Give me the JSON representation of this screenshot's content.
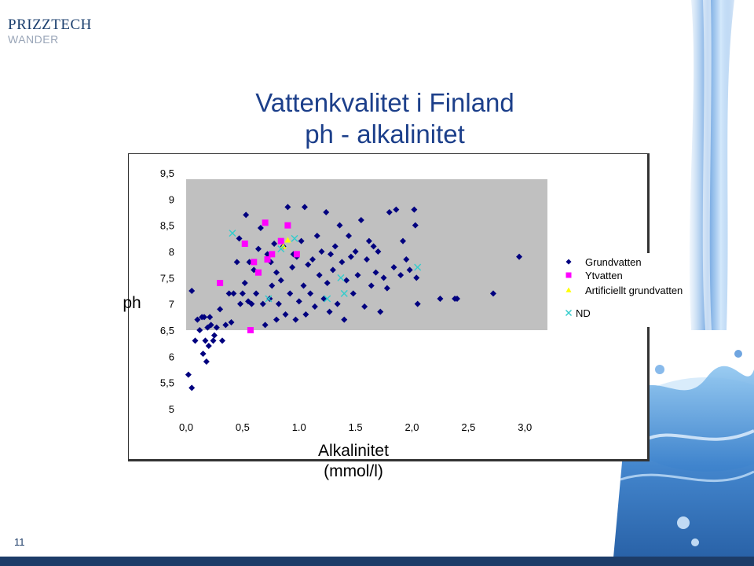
{
  "logo": {
    "line1": "PRIZZTECH",
    "line2": "WANDER"
  },
  "title": {
    "line1": "Vattenkvalitet i Finland",
    "line2": "ph - alkalinitet"
  },
  "page_number": "11",
  "colors": {
    "grundvatten": "#00007f",
    "ytvatten": "#ff00ff",
    "artificiellt": "#ffff00",
    "nd": "#33cccc",
    "plot_bg": "#c0c0c0",
    "title": "#1c3f8a"
  },
  "chart_data": {
    "type": "scatter",
    "ylabel": "ph",
    "xlabel_line1": "Alkalinitet",
    "xlabel_line2": "(mmol/l)",
    "xlim": [
      0,
      3.2
    ],
    "ylim": [
      5,
      9.5
    ],
    "x_ticks": [
      0,
      0.5,
      1.0,
      1.5,
      2.0,
      2.5,
      3.0
    ],
    "x_tick_labels": [
      "0,0",
      "0,5",
      "1.0",
      "1.5",
      "2,0",
      "2,5",
      "3,0"
    ],
    "y_ticks": [
      5,
      5.5,
      6,
      6.5,
      7,
      7.5,
      8,
      8.5,
      9,
      9.5
    ],
    "y_tick_labels": [
      "5",
      "5,5",
      "6",
      "6,5",
      "7",
      "7,5",
      "8",
      "8,5",
      "9",
      "9,5"
    ],
    "grid": false,
    "legend_position": "right",
    "series": [
      {
        "name": "Grundvatten",
        "marker": "diamond",
        "points": [
          [
            0.02,
            5.65
          ],
          [
            0.05,
            5.4
          ],
          [
            0.05,
            7.25
          ],
          [
            0.08,
            6.3
          ],
          [
            0.1,
            6.7
          ],
          [
            0.12,
            6.5
          ],
          [
            0.14,
            6.75
          ],
          [
            0.15,
            6.05
          ],
          [
            0.16,
            6.75
          ],
          [
            0.17,
            6.3
          ],
          [
            0.18,
            5.9
          ],
          [
            0.19,
            6.55
          ],
          [
            0.2,
            6.2
          ],
          [
            0.21,
            6.75
          ],
          [
            0.22,
            6.6
          ],
          [
            0.24,
            6.3
          ],
          [
            0.25,
            6.4
          ],
          [
            0.27,
            6.55
          ],
          [
            0.3,
            6.9
          ],
          [
            0.32,
            6.3
          ],
          [
            0.35,
            6.6
          ],
          [
            0.38,
            7.2
          ],
          [
            0.4,
            6.65
          ],
          [
            0.42,
            7.2
          ],
          [
            0.45,
            7.8
          ],
          [
            0.47,
            8.25
          ],
          [
            0.48,
            7.0
          ],
          [
            0.5,
            7.2
          ],
          [
            0.52,
            7.4
          ],
          [
            0.53,
            8.7
          ],
          [
            0.55,
            7.05
          ],
          [
            0.56,
            7.8
          ],
          [
            0.58,
            7.0
          ],
          [
            0.6,
            7.65
          ],
          [
            0.62,
            7.2
          ],
          [
            0.64,
            8.05
          ],
          [
            0.66,
            8.45
          ],
          [
            0.68,
            7.0
          ],
          [
            0.7,
            6.6
          ],
          [
            0.72,
            7.95
          ],
          [
            0.74,
            7.1
          ],
          [
            0.75,
            7.8
          ],
          [
            0.76,
            7.35
          ],
          [
            0.78,
            8.15
          ],
          [
            0.8,
            6.7
          ],
          [
            0.8,
            7.6
          ],
          [
            0.82,
            7.0
          ],
          [
            0.84,
            7.45
          ],
          [
            0.86,
            8.1
          ],
          [
            0.88,
            6.8
          ],
          [
            0.9,
            8.85
          ],
          [
            0.92,
            7.2
          ],
          [
            0.94,
            7.7
          ],
          [
            0.95,
            7.95
          ],
          [
            0.97,
            6.7
          ],
          [
            0.98,
            7.9
          ],
          [
            1.0,
            7.05
          ],
          [
            1.02,
            8.2
          ],
          [
            1.04,
            7.35
          ],
          [
            1.05,
            8.85
          ],
          [
            1.06,
            6.8
          ],
          [
            1.08,
            7.75
          ],
          [
            1.1,
            7.2
          ],
          [
            1.12,
            7.85
          ],
          [
            1.14,
            6.95
          ],
          [
            1.16,
            8.3
          ],
          [
            1.18,
            7.55
          ],
          [
            1.2,
            8.0
          ],
          [
            1.22,
            7.1
          ],
          [
            1.24,
            8.75
          ],
          [
            1.25,
            7.4
          ],
          [
            1.27,
            6.85
          ],
          [
            1.28,
            7.95
          ],
          [
            1.3,
            7.65
          ],
          [
            1.32,
            8.1
          ],
          [
            1.34,
            7.0
          ],
          [
            1.36,
            8.5
          ],
          [
            1.38,
            7.8
          ],
          [
            1.4,
            6.7
          ],
          [
            1.42,
            7.45
          ],
          [
            1.44,
            8.3
          ],
          [
            1.46,
            7.9
          ],
          [
            1.48,
            7.2
          ],
          [
            1.5,
            8.0
          ],
          [
            1.52,
            7.55
          ],
          [
            1.55,
            8.6
          ],
          [
            1.58,
            6.95
          ],
          [
            1.6,
            7.85
          ],
          [
            1.62,
            8.2
          ],
          [
            1.64,
            7.35
          ],
          [
            1.66,
            8.1
          ],
          [
            1.68,
            7.6
          ],
          [
            1.7,
            8.0
          ],
          [
            1.72,
            6.85
          ],
          [
            1.75,
            7.5
          ],
          [
            1.78,
            7.3
          ],
          [
            1.8,
            8.75
          ],
          [
            1.84,
            7.7
          ],
          [
            1.86,
            8.8
          ],
          [
            1.9,
            7.55
          ],
          [
            1.92,
            8.2
          ],
          [
            1.95,
            7.85
          ],
          [
            1.98,
            7.65
          ],
          [
            2.02,
            8.8
          ],
          [
            2.03,
            8.5
          ],
          [
            2.04,
            7.5
          ],
          [
            2.05,
            7.0
          ],
          [
            2.25,
            7.1
          ],
          [
            2.38,
            7.1
          ],
          [
            2.4,
            7.1
          ],
          [
            2.72,
            7.2
          ],
          [
            2.95,
            7.9
          ]
        ]
      },
      {
        "name": "Ytvatten",
        "marker": "square",
        "points": [
          [
            0.3,
            7.4
          ],
          [
            0.52,
            8.15
          ],
          [
            0.57,
            6.5
          ],
          [
            0.6,
            7.8
          ],
          [
            0.64,
            7.6
          ],
          [
            0.7,
            8.55
          ],
          [
            0.72,
            7.85
          ],
          [
            0.76,
            7.95
          ],
          [
            0.84,
            8.2
          ],
          [
            0.9,
            8.5
          ],
          [
            0.98,
            7.95
          ]
        ]
      },
      {
        "name": "Artificiellt grundvatten",
        "marker": "triangle",
        "points": [
          [
            0.86,
            8.1
          ],
          [
            0.9,
            8.22
          ]
        ]
      },
      {
        "name": "ND",
        "marker": "x",
        "points": [
          [
            0.41,
            8.35
          ],
          [
            0.73,
            7.1
          ],
          [
            0.84,
            8.05
          ],
          [
            0.96,
            8.25
          ],
          [
            1.25,
            7.1
          ],
          [
            1.37,
            7.5
          ],
          [
            1.4,
            7.2
          ],
          [
            2.05,
            7.7
          ]
        ]
      }
    ]
  }
}
